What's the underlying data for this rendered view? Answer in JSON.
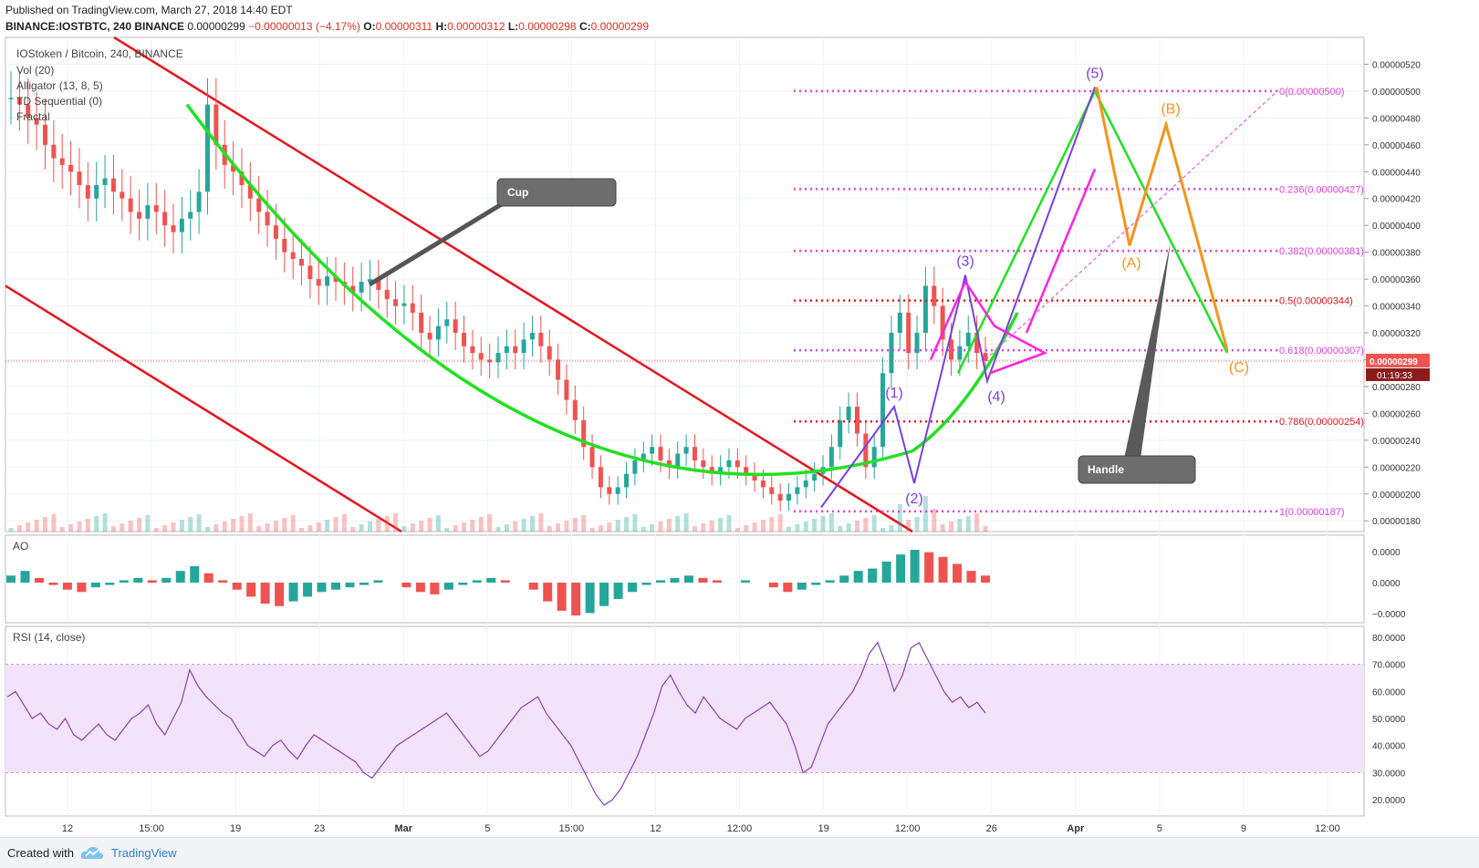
{
  "header": {
    "published": "Published on TradingView.com, March 27, 2018 14:40 EDT",
    "symbol": "BINANCE:IOSTBTC, 240 BINANCE",
    "last": "0.00000299",
    "change": "−0.00000013 (−4.17%)",
    "ohlc": {
      "o": "0.00000311",
      "h": "0.00000312",
      "l": "0.00000298",
      "c": "0.00000299"
    }
  },
  "legend": {
    "title": "IOStoken / Bitcoin, 240, BINANCE",
    "indicators": [
      "Vol (20)",
      "Alligator (13, 8, 5)",
      "TD Sequential (0)",
      "Fractal"
    ]
  },
  "footer": {
    "created_with": "Created with",
    "brand": "TradingView"
  },
  "colors": {
    "up": "#26a69a",
    "down": "#ef5350",
    "green": "#22e022",
    "red": "#e8141c",
    "magenta": "#ff22dd",
    "purple": "#7b3fe0",
    "orange": "#f7931a",
    "fib": "#e040e0"
  },
  "chart_data": [
    {
      "type": "line",
      "title": "IOStoken / Bitcoin, 240, BINANCE",
      "panel": "price",
      "y_axis": {
        "ticks": [
          "0.00000520",
          "0.00000500",
          "0.00000480",
          "0.00000460",
          "0.00000440",
          "0.00000420",
          "0.00000400",
          "0.00000380",
          "0.00000360",
          "0.00000340",
          "0.00000320",
          "0.00000300",
          "0.00000280",
          "0.00000260",
          "0.00000240",
          "0.00000220",
          "0.00000200",
          "0.00000180"
        ],
        "ylim": [
          1.72e-06,
          5.4e-06
        ]
      },
      "x_axis": {
        "ticks": [
          "12",
          "15:00",
          "19",
          "23",
          "Mar",
          "5",
          "15:00",
          "12",
          "12:00",
          "19",
          "12:00",
          "26",
          "Apr",
          "5",
          "9",
          "12:00"
        ]
      },
      "price_label": "0.00000299",
      "countdown": "01:19:33",
      "annotations": {
        "cup": "Cup",
        "handle": "Handle"
      },
      "fibonacci": [
        {
          "label": "0(0.00000500)",
          "value": 5e-06
        },
        {
          "label": "0.236(0.00000427)",
          "value": 4.27e-06
        },
        {
          "label": "0.382(0.00000381)",
          "value": 3.81e-06
        },
        {
          "label": "0.5(0.00000344)",
          "value": 3.44e-06
        },
        {
          "label": "0.618(0.00000307)",
          "value": 3.07e-06
        },
        {
          "label": "0.786(0.00000254)",
          "value": 2.54e-06
        },
        {
          "label": "1(0.00000187)",
          "value": 1.87e-06
        }
      ],
      "elliott_waves": [
        {
          "label": "(1)",
          "value": 2.65e-06
        },
        {
          "label": "(2)",
          "value": 2.08e-06
        },
        {
          "label": "(3)",
          "value": 3.63e-06
        },
        {
          "label": "(4)",
          "value": 2.84e-06
        },
        {
          "label": "(5)",
          "value": 5.03e-06
        }
      ],
      "corrective_waves": [
        {
          "label": "(A)",
          "value": 3.85e-06
        },
        {
          "label": "(B)",
          "value": 4.75e-06
        },
        {
          "label": "(C)",
          "value": 3.07e-06
        }
      ],
      "series": [
        {
          "values": [
            4.95,
            4.9,
            4.8,
            4.75,
            4.6,
            4.5,
            4.45,
            4.4,
            4.3,
            4.2,
            4.3,
            4.35,
            4.25,
            4.2,
            4.1,
            4.05,
            4.15,
            4.1,
            4.0,
            3.95,
            4.05,
            4.1,
            4.25,
            4.9,
            4.6,
            4.45,
            4.4,
            4.3,
            4.2,
            4.1,
            4.0,
            3.9,
            3.8,
            3.75,
            3.7,
            3.6,
            3.55,
            3.62,
            3.58,
            3.55,
            3.5,
            3.58,
            3.6,
            3.52,
            3.45,
            3.4,
            3.42,
            3.35,
            3.2,
            3.15,
            3.25,
            3.3,
            3.2,
            3.1,
            3.05,
            3.0,
            2.98,
            3.05,
            3.1,
            3.05,
            3.15,
            3.2,
            3.1,
            3.0,
            2.85,
            2.7,
            2.55,
            2.35,
            2.2,
            2.05,
            2.0,
            2.05,
            2.15,
            2.25,
            2.3,
            2.35,
            2.25,
            2.2,
            2.3,
            2.35,
            2.25,
            2.2,
            2.15,
            2.2,
            2.25,
            2.2,
            2.15,
            2.1,
            2.05,
            2.0,
            1.95,
            2.0,
            2.05,
            2.1,
            2.15,
            2.2,
            2.35,
            2.55,
            2.65,
            2.45,
            2.2,
            2.35,
            2.9,
            3.2,
            3.35,
            3.05,
            3.2,
            3.55,
            3.4,
            3.15,
            3.0,
            3.1,
            3.2,
            3.05,
            2.99
          ]
        }
      ]
    },
    {
      "type": "bar",
      "title": "AO",
      "panel": "ao",
      "y_axis": {
        "ticks": [
          "0.0000",
          "0.0000",
          "−0.0000"
        ]
      },
      "series": [
        {
          "values": [
            0.3,
            0.5,
            0.2,
            -0.1,
            -0.3,
            -0.4,
            -0.2,
            -0.1,
            0.1,
            0.2,
            0.1,
            0.2,
            0.5,
            0.7,
            0.4,
            0.1,
            -0.3,
            -0.6,
            -0.9,
            -1.0,
            -0.8,
            -0.6,
            -0.4,
            -0.3,
            -0.2,
            -0.1,
            0.1,
            0.0,
            -0.2,
            -0.4,
            -0.5,
            -0.3,
            -0.1,
            0.1,
            0.2,
            0.1,
            0.0,
            -0.3,
            -0.8,
            -1.2,
            -1.4,
            -1.3,
            -1.0,
            -0.7,
            -0.4,
            -0.1,
            0.1,
            0.2,
            0.3,
            0.2,
            0.1,
            0.0,
            0.1,
            0.0,
            -0.2,
            -0.4,
            -0.3,
            -0.1,
            0.1,
            0.3,
            0.5,
            0.6,
            0.9,
            1.2,
            1.4,
            1.3,
            1.1,
            0.8,
            0.5,
            0.3
          ]
        }
      ]
    },
    {
      "type": "line",
      "title": "RSI (14, close)",
      "panel": "rsi",
      "y_axis": {
        "ticks": [
          "80.0000",
          "70.0000",
          "60.0000",
          "50.0000",
          "40.0000",
          "30.0000",
          "20.0000"
        ],
        "ylim": [
          14,
          84
        ]
      },
      "bands": [
        30,
        70
      ],
      "series": [
        {
          "values": [
            58,
            60,
            55,
            50,
            52,
            48,
            46,
            50,
            44,
            42,
            45,
            48,
            44,
            42,
            46,
            50,
            52,
            55,
            48,
            44,
            50,
            56,
            68,
            62,
            58,
            55,
            52,
            50,
            45,
            40,
            38,
            36,
            40,
            42,
            38,
            35,
            40,
            44,
            42,
            40,
            38,
            36,
            34,
            30,
            28,
            32,
            36,
            40,
            42,
            44,
            46,
            48,
            50,
            52,
            48,
            44,
            40,
            36,
            38,
            42,
            46,
            50,
            54,
            56,
            58,
            52,
            48,
            44,
            40,
            34,
            28,
            22,
            18,
            20,
            24,
            30,
            36,
            44,
            52,
            62,
            66,
            60,
            55,
            52,
            58,
            54,
            50,
            48,
            46,
            50,
            52,
            54,
            56,
            52,
            48,
            40,
            30,
            32,
            40,
            48,
            52,
            56,
            60,
            66,
            74,
            78,
            70,
            60,
            66,
            76,
            78,
            72,
            66,
            60,
            56,
            58,
            54,
            56,
            52
          ]
        }
      ]
    }
  ]
}
